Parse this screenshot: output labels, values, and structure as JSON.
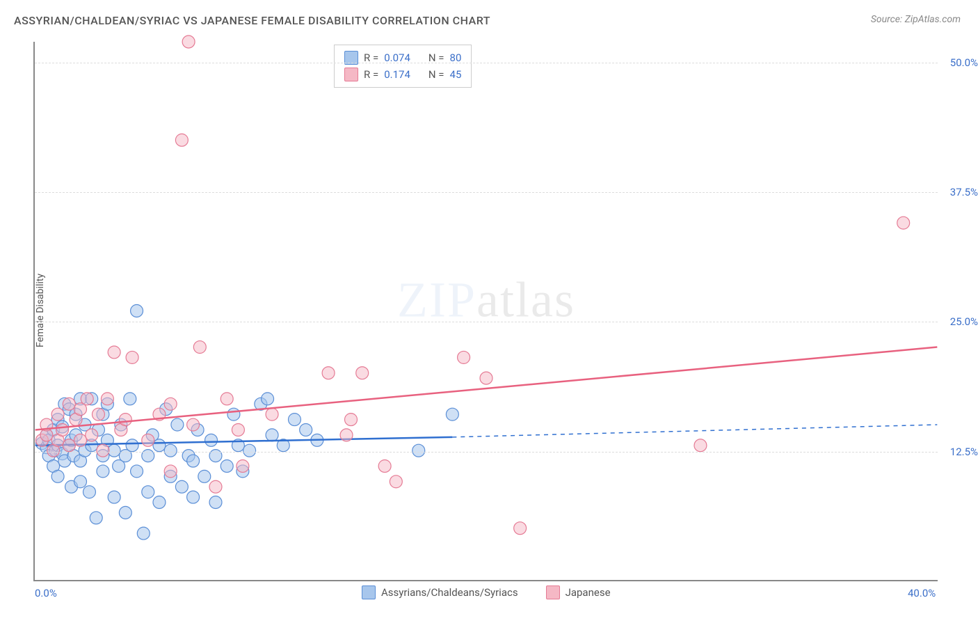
{
  "title": "ASSYRIAN/CHALDEAN/SYRIAC VS JAPANESE FEMALE DISABILITY CORRELATION CHART",
  "source": "Source: ZipAtlas.com",
  "y_axis_label": "Female Disability",
  "watermark_zip": "ZIP",
  "watermark_atlas": "atlas",
  "chart": {
    "type": "scatter",
    "xlim": [
      0,
      40
    ],
    "ylim": [
      0,
      52
    ],
    "x_ticks": [
      {
        "value": 0,
        "label": "0.0%"
      },
      {
        "value": 40,
        "label": "40.0%"
      }
    ],
    "y_ticks": [
      {
        "value": 12.5,
        "label": "12.5%"
      },
      {
        "value": 25.0,
        "label": "25.0%"
      },
      {
        "value": 37.5,
        "label": "37.5%"
      },
      {
        "value": 50.0,
        "label": "50.0%"
      }
    ],
    "grid_color": "#dddddd",
    "background_color": "#ffffff",
    "series": [
      {
        "name": "Assyrians/Chaldeans/Syriacs",
        "marker_fill": "#a7c6ec",
        "marker_stroke": "#5a8ed6",
        "marker_fill_opacity": 0.55,
        "marker_radius": 9,
        "line_color": "#2f6fd0",
        "line_width": 2.5,
        "line_dash_extend": true,
        "R": "0.074",
        "N": "80",
        "trend": {
          "x1": 0,
          "y1": 13.0,
          "x2": 18.5,
          "y2": 13.8,
          "x2_dash": 40,
          "y2_dash": 15.0
        },
        "points": [
          [
            0.3,
            13.2
          ],
          [
            0.5,
            12.8
          ],
          [
            0.5,
            14.0
          ],
          [
            0.6,
            12.0
          ],
          [
            0.6,
            13.5
          ],
          [
            0.8,
            11.0
          ],
          [
            0.8,
            14.5
          ],
          [
            0.9,
            12.5
          ],
          [
            1.0,
            13.0
          ],
          [
            1.0,
            15.5
          ],
          [
            1.0,
            10.0
          ],
          [
            1.2,
            12.2
          ],
          [
            1.2,
            14.8
          ],
          [
            1.3,
            17.0
          ],
          [
            1.3,
            11.5
          ],
          [
            1.5,
            13.0
          ],
          [
            1.5,
            16.5
          ],
          [
            1.6,
            13.5
          ],
          [
            1.6,
            9.0
          ],
          [
            1.7,
            12.0
          ],
          [
            1.8,
            16.0
          ],
          [
            1.8,
            14.0
          ],
          [
            2.0,
            17.5
          ],
          [
            2.0,
            9.5
          ],
          [
            2.0,
            11.5
          ],
          [
            2.2,
            12.5
          ],
          [
            2.2,
            15.0
          ],
          [
            2.4,
            8.5
          ],
          [
            2.5,
            17.5
          ],
          [
            2.5,
            13.0
          ],
          [
            2.7,
            6.0
          ],
          [
            2.8,
            14.5
          ],
          [
            3.0,
            12.0
          ],
          [
            3.0,
            16.0
          ],
          [
            3.0,
            10.5
          ],
          [
            3.2,
            13.5
          ],
          [
            3.2,
            17.0
          ],
          [
            3.5,
            12.5
          ],
          [
            3.5,
            8.0
          ],
          [
            3.7,
            11.0
          ],
          [
            3.8,
            15.0
          ],
          [
            4.0,
            12.0
          ],
          [
            4.0,
            6.5
          ],
          [
            4.2,
            17.5
          ],
          [
            4.3,
            13.0
          ],
          [
            4.5,
            26.0
          ],
          [
            4.5,
            10.5
          ],
          [
            4.8,
            4.5
          ],
          [
            5.0,
            12.0
          ],
          [
            5.0,
            8.5
          ],
          [
            5.2,
            14.0
          ],
          [
            5.5,
            7.5
          ],
          [
            5.5,
            13.0
          ],
          [
            5.8,
            16.5
          ],
          [
            6.0,
            10.0
          ],
          [
            6.0,
            12.5
          ],
          [
            6.3,
            15.0
          ],
          [
            6.5,
            9.0
          ],
          [
            6.8,
            12.0
          ],
          [
            7.0,
            11.5
          ],
          [
            7.0,
            8.0
          ],
          [
            7.2,
            14.5
          ],
          [
            7.5,
            10.0
          ],
          [
            7.8,
            13.5
          ],
          [
            8.0,
            12.0
          ],
          [
            8.0,
            7.5
          ],
          [
            8.5,
            11.0
          ],
          [
            8.8,
            16.0
          ],
          [
            9.0,
            13.0
          ],
          [
            9.2,
            10.5
          ],
          [
            9.5,
            12.5
          ],
          [
            10.0,
            17.0
          ],
          [
            10.3,
            17.5
          ],
          [
            10.5,
            14.0
          ],
          [
            11.0,
            13.0
          ],
          [
            11.5,
            15.5
          ],
          [
            12.0,
            14.5
          ],
          [
            12.5,
            13.5
          ],
          [
            17.0,
            12.5
          ],
          [
            18.5,
            16.0
          ]
        ]
      },
      {
        "name": "Japanese",
        "marker_fill": "#f5b8c5",
        "marker_stroke": "#e57a94",
        "marker_fill_opacity": 0.5,
        "marker_radius": 9,
        "line_color": "#e8617f",
        "line_width": 2.5,
        "line_dash_extend": false,
        "R": "0.174",
        "N": "45",
        "trend": {
          "x1": 0,
          "y1": 14.5,
          "x2": 40,
          "y2": 22.5
        },
        "points": [
          [
            0.3,
            13.5
          ],
          [
            0.5,
            14.0
          ],
          [
            0.5,
            15.0
          ],
          [
            0.8,
            12.5
          ],
          [
            1.0,
            13.5
          ],
          [
            1.0,
            16.0
          ],
          [
            1.2,
            14.5
          ],
          [
            1.5,
            17.0
          ],
          [
            1.5,
            13.0
          ],
          [
            1.8,
            15.5
          ],
          [
            2.0,
            16.5
          ],
          [
            2.0,
            13.5
          ],
          [
            2.3,
            17.5
          ],
          [
            2.5,
            14.0
          ],
          [
            2.8,
            16.0
          ],
          [
            3.0,
            12.5
          ],
          [
            3.2,
            17.5
          ],
          [
            3.5,
            22.0
          ],
          [
            3.8,
            14.5
          ],
          [
            4.0,
            15.5
          ],
          [
            4.3,
            21.5
          ],
          [
            5.0,
            13.5
          ],
          [
            5.5,
            16.0
          ],
          [
            6.0,
            17.0
          ],
          [
            6.0,
            10.5
          ],
          [
            6.5,
            42.5
          ],
          [
            6.8,
            52.0
          ],
          [
            7.0,
            15.0
          ],
          [
            7.3,
            22.5
          ],
          [
            8.0,
            9.0
          ],
          [
            8.5,
            17.5
          ],
          [
            9.0,
            14.5
          ],
          [
            9.2,
            11.0
          ],
          [
            10.5,
            16.0
          ],
          [
            13.0,
            20.0
          ],
          [
            13.8,
            14.0
          ],
          [
            14.0,
            15.5
          ],
          [
            14.5,
            20.0
          ],
          [
            15.5,
            11.0
          ],
          [
            16.0,
            9.5
          ],
          [
            19.0,
            21.5
          ],
          [
            20.0,
            19.5
          ],
          [
            21.5,
            5.0
          ],
          [
            29.5,
            13.0
          ],
          [
            38.5,
            34.5
          ]
        ]
      }
    ]
  },
  "legend_top": {
    "r_label": "R =",
    "n_label": "N ="
  },
  "legend_bottom": [
    {
      "label": "Assyrians/Chaldeans/Syriacs",
      "fill": "#a7c6ec",
      "stroke": "#5a8ed6"
    },
    {
      "label": "Japanese",
      "fill": "#f5b8c5",
      "stroke": "#e57a94"
    }
  ]
}
